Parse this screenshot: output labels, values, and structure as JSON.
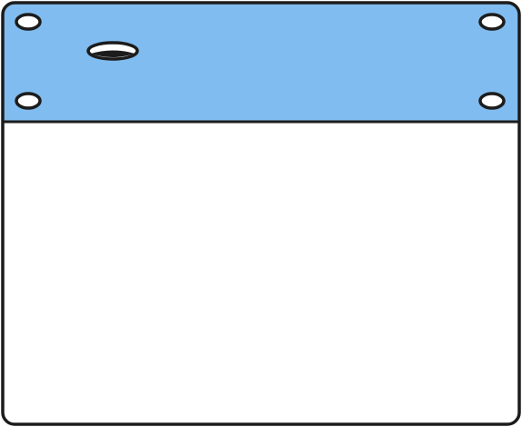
{
  "colors": {
    "panel_fill": "#ffffff",
    "header_fill": "#80bcef",
    "outline": "#1c1c1c"
  },
  "icons": {
    "header_holes": "mounting-hole-icon",
    "slot": "slot-opening-icon"
  }
}
